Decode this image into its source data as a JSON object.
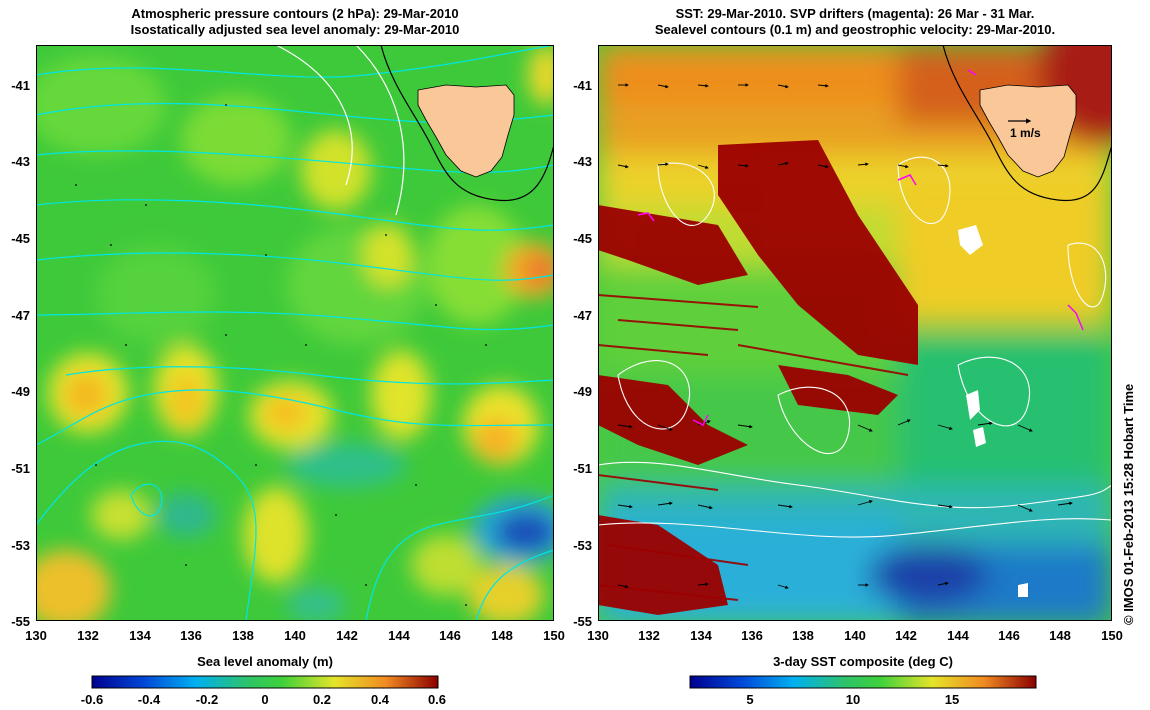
{
  "left_panel": {
    "title_line1": "Atmospheric pressure contours (2 hPa): 29-Mar-2010",
    "title_line2": "Isostatically adjusted sea level anomaly: 29-Mar-2010",
    "colorbar_title": "Sea level anomaly (m)",
    "colorbar_ticks": [
      "-0.6",
      "-0.4",
      "-0.2",
      "0",
      "0.2",
      "0.4",
      "0.6"
    ],
    "colorbar_range": [
      -0.6,
      0.6
    ]
  },
  "right_panel": {
    "title_line1": "SST: 29-Mar-2010. SVP drifters (magenta): 26 Mar - 31 Mar.",
    "title_line2": "Sealevel contours (0.1 m) and geostrophic velocity: 29-Mar-2010.",
    "colorbar_title": "3-day SST composite (deg C)",
    "colorbar_ticks": [
      "5",
      "10",
      "15"
    ],
    "colorbar_range": [
      2,
      18
    ],
    "velocity_scale_label": "1 m/s"
  },
  "axes": {
    "lat_ticks": [
      "-41",
      "-43",
      "-45",
      "-47",
      "-49",
      "-51",
      "-53",
      "-55"
    ],
    "lon_ticks": [
      "130",
      "132",
      "134",
      "136",
      "138",
      "140",
      "142",
      "144",
      "146",
      "148",
      "150"
    ],
    "lat_range": [
      -55,
      -40
    ],
    "lon_range": [
      130,
      150
    ]
  },
  "credit": "© IMOS 01-Feb-2013 15:28 Hobart Time",
  "colors": {
    "land": "#fac898",
    "slope_contour": "#000000",
    "pressure_contour": "#00e5e5",
    "sealevel_contour": "#ffffff",
    "drifter": "#ff00ff",
    "cloud": "#9b0000"
  }
}
